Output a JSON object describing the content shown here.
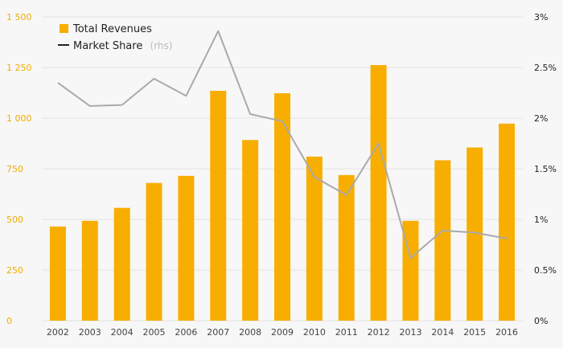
{
  "chart_data": {
    "type": "bar",
    "categories": [
      "2002",
      "2003",
      "2004",
      "2005",
      "2006",
      "2007",
      "2008",
      "2009",
      "2010",
      "2011",
      "2012",
      "2013",
      "2014",
      "2015",
      "2016"
    ],
    "series": [
      {
        "name": "Total Revenues",
        "type": "bar",
        "axis": "left",
        "color": "#f7ae00",
        "values": [
          465,
          493,
          557,
          680,
          715,
          1135,
          892,
          1123,
          810,
          719,
          1262,
          493,
          792,
          855,
          973
        ]
      },
      {
        "name": "Market Share",
        "type": "line",
        "axis": "right",
        "color": "#aaaaaa",
        "values": [
          2.35,
          2.12,
          2.13,
          2.39,
          2.22,
          2.86,
          2.04,
          1.97,
          1.42,
          1.24,
          1.75,
          0.62,
          0.89,
          0.87,
          0.81
        ]
      }
    ],
    "legend": {
      "position": "top-left",
      "items": [
        {
          "label": "Total Revenues",
          "suffix": ""
        },
        {
          "label": "Market Share",
          "suffix": "(rhs)"
        }
      ]
    },
    "y_left": {
      "ylim": [
        0,
        1500
      ],
      "ticks": [
        0,
        250,
        500,
        750,
        1000,
        1250,
        1500
      ],
      "tick_labels": [
        "0",
        "250",
        "500",
        "750",
        "1 000",
        "1 250",
        "1 500"
      ],
      "label_color": "#f0ad00"
    },
    "y_right": {
      "ylim": [
        0,
        3
      ],
      "ticks": [
        0,
        0.5,
        1,
        1.5,
        2,
        2.5,
        3
      ],
      "tick_labels": [
        "0%",
        "0.5%",
        "1%",
        "1.5%",
        "2%",
        "2.5%",
        "3%"
      ],
      "label_color": "#222222"
    },
    "grid": true,
    "title": "",
    "xlabel": "",
    "ylabel": ""
  }
}
